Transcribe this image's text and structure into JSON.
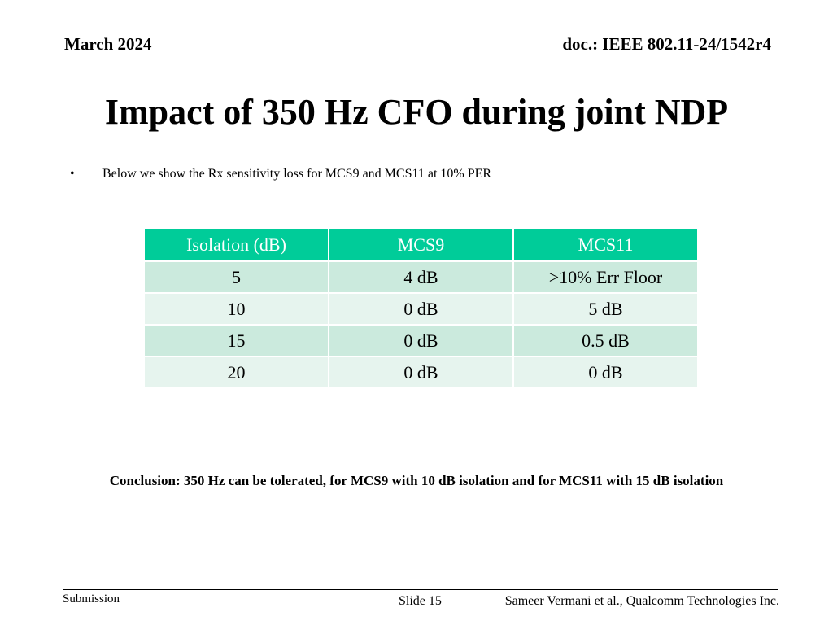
{
  "header": {
    "date": "March 2024",
    "doc": "doc.: IEEE 802.11-24/1542r4"
  },
  "title": "Impact of 350 Hz CFO during joint NDP",
  "bullets": [
    "Below we show the Rx sensitivity loss for MCS9 and MCS11 at 10% PER"
  ],
  "table": {
    "headers": [
      "Isolation (dB)",
      "MCS9",
      "MCS11"
    ],
    "rows": [
      [
        "5",
        "4 dB",
        ">10% Err Floor"
      ],
      [
        "10",
        "0 dB",
        "5 dB"
      ],
      [
        "15",
        "0 dB",
        "0.5 dB"
      ],
      [
        "20",
        "0 dB",
        "0 dB"
      ]
    ],
    "colors": {
      "header_bg": "#00cc99",
      "row_odd_bg": "#cbeadd",
      "row_even_bg": "#e6f4ee"
    }
  },
  "conclusion": "Conclusion: 350 Hz can be tolerated, for MCS9 with 10 dB isolation and for MCS11 with 15 dB isolation",
  "footer": {
    "left": "Submission",
    "slide": "Slide 15",
    "author": "Sameer Vermani et al., Qualcomm Technologies Inc."
  }
}
